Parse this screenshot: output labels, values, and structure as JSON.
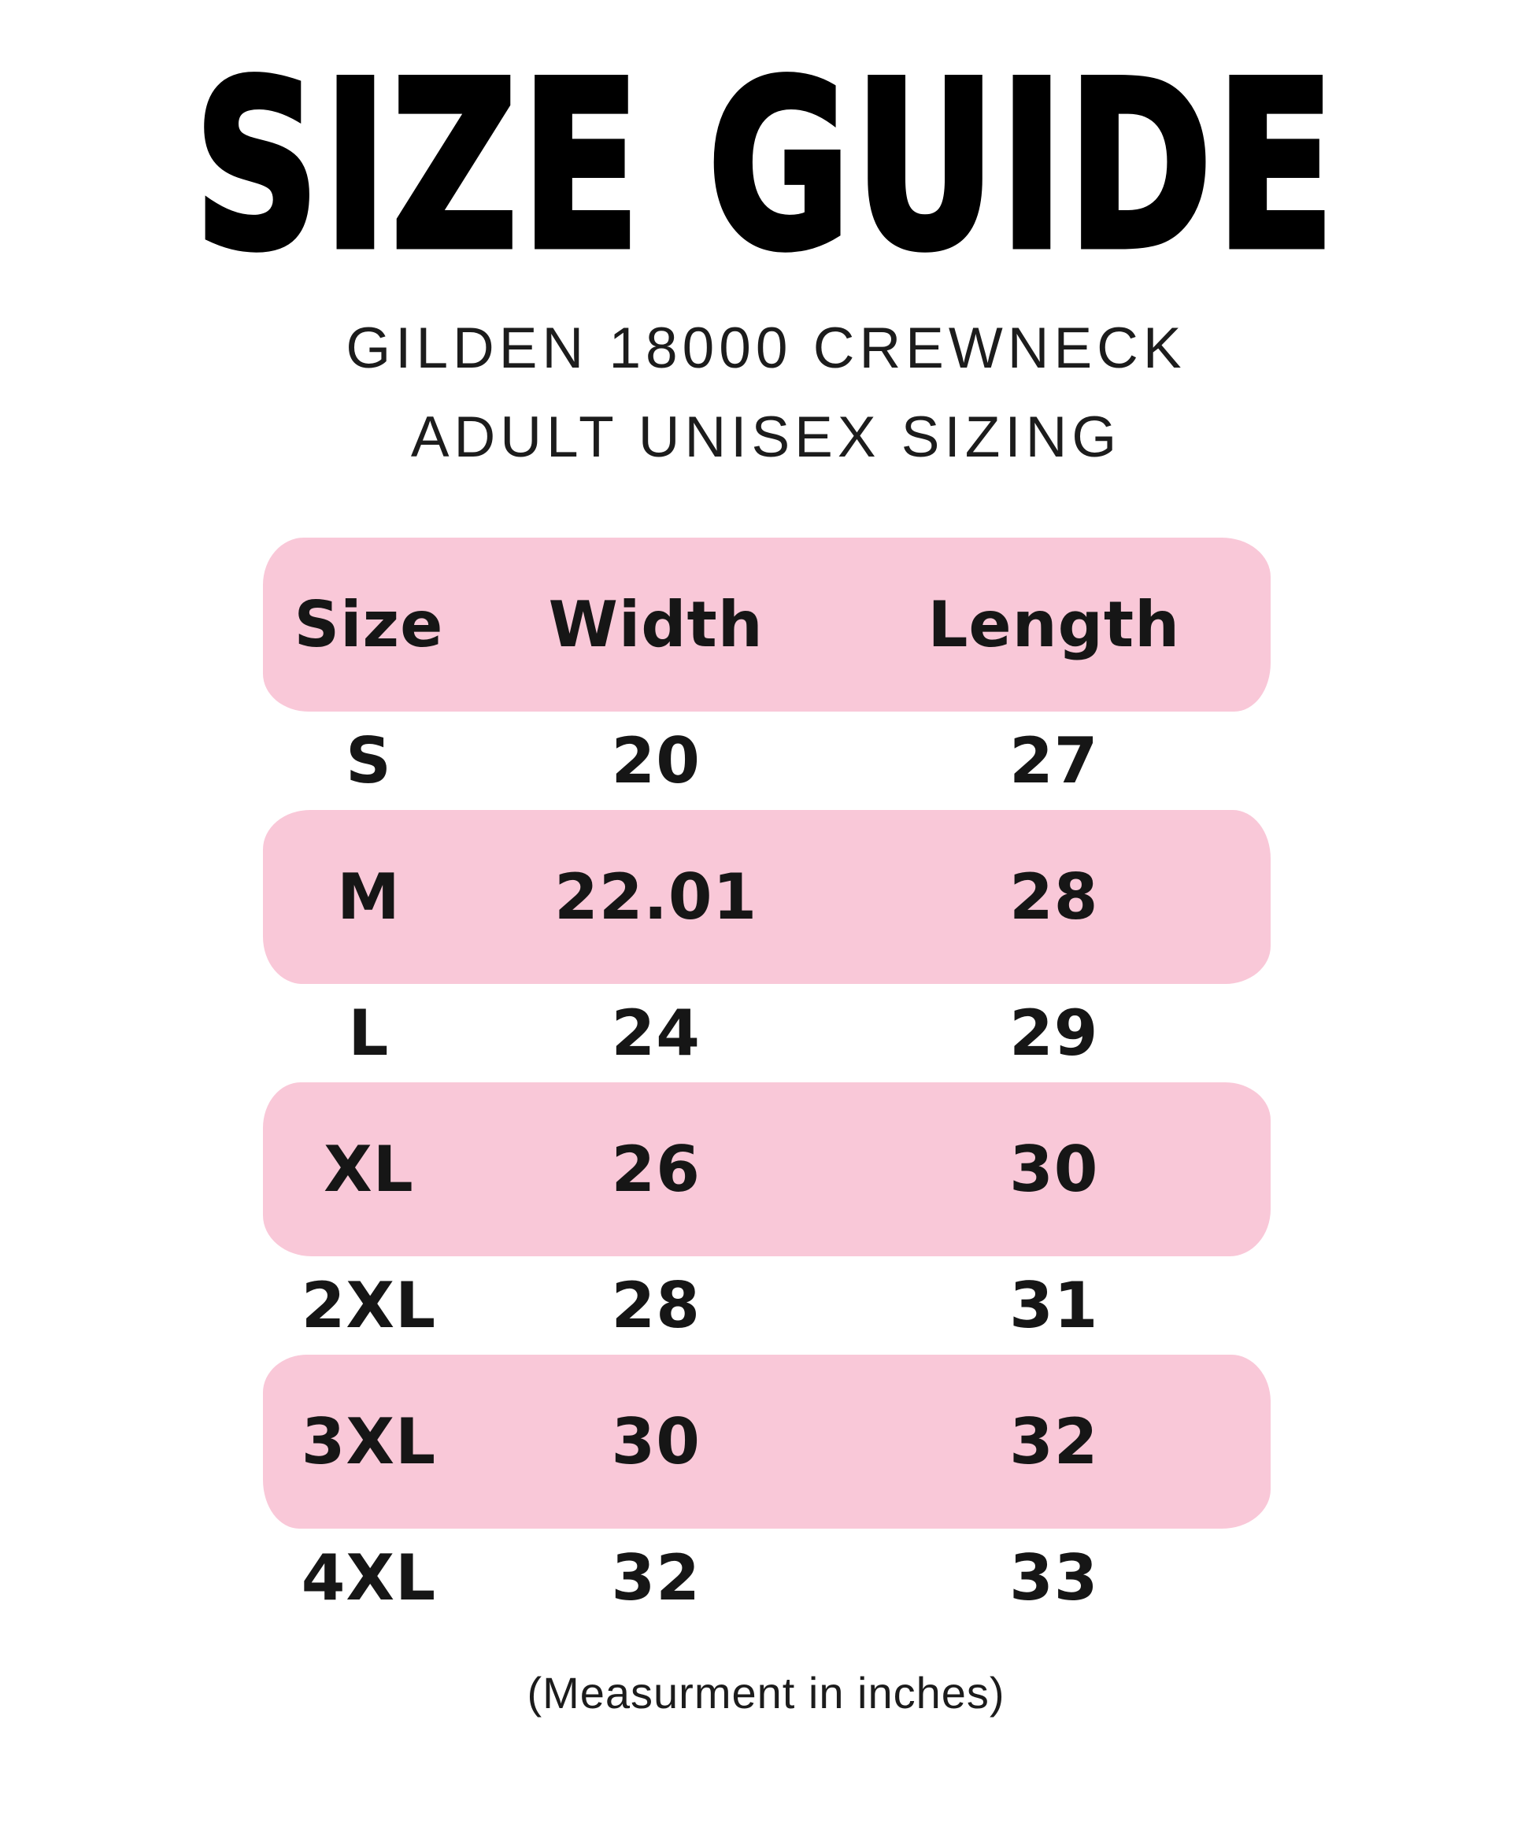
{
  "title": "SIZE GUIDE",
  "subtitle_line1": "GILDEN 18000 CREWNECK",
  "subtitle_line2": "ADULT UNISEX SIZING",
  "footer_note": "(Measurment in inches)",
  "colors": {
    "highlight_pink": "#F9C8D8",
    "text": "#141414",
    "background": "#FFFFFF"
  },
  "chart_data": {
    "type": "table",
    "title": "SIZE GUIDE",
    "subtitle": [
      "GILDEN 18000 CREWNECK",
      "ADULT UNISEX SIZING"
    ],
    "columns": [
      "Size",
      "Width",
      "Length"
    ],
    "rows": [
      {
        "size": "S",
        "width": "20",
        "length": "27",
        "highlighted": false
      },
      {
        "size": "M",
        "width": "22.01",
        "length": "28",
        "highlighted": true
      },
      {
        "size": "L",
        "width": "24",
        "length": "29",
        "highlighted": false
      },
      {
        "size": "XL",
        "width": "26",
        "length": "30",
        "highlighted": true
      },
      {
        "size": "2XL",
        "width": "28",
        "length": "31",
        "highlighted": false
      },
      {
        "size": "3XL",
        "width": "30",
        "length": "32",
        "highlighted": true
      },
      {
        "size": "4XL",
        "width": "32",
        "length": "33",
        "highlighted": false
      }
    ],
    "header_highlighted": true,
    "note": "(Measurment in inches)",
    "units": "inches"
  }
}
